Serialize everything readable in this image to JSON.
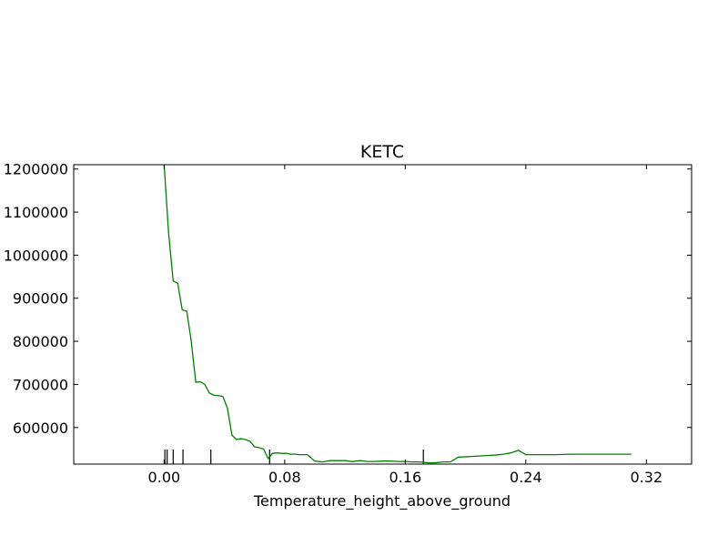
{
  "chart_data": {
    "type": "line",
    "title": "KETC",
    "xlabel": "Temperature_height_above_ground",
    "ylabel": "",
    "xlim": [
      -0.06,
      0.35
    ],
    "ylim": [
      515000,
      1210000
    ],
    "grid": false,
    "line_color": "#008000",
    "x_ticks": [
      0.0,
      0.08,
      0.16,
      0.24,
      0.32
    ],
    "x_tick_labels": [
      "0.00",
      "0.08",
      "0.16",
      "0.24",
      "0.32"
    ],
    "y_ticks": [
      600000,
      700000,
      800000,
      900000,
      1000000,
      1100000,
      1200000
    ],
    "y_tick_labels": [
      "600000",
      "700000",
      "800000",
      "900000",
      "1000000",
      "1100000",
      "1200000"
    ],
    "rug_x": [
      0.0005,
      0.002,
      0.006,
      0.0125,
      0.031,
      0.07,
      0.172
    ],
    "series": [
      {
        "x": [
          0.0,
          0.003,
          0.006,
          0.009,
          0.012,
          0.015,
          0.018,
          0.021,
          0.024,
          0.027,
          0.03,
          0.033,
          0.036,
          0.039,
          0.042,
          0.045,
          0.048,
          0.051,
          0.054,
          0.057,
          0.06,
          0.063,
          0.066,
          0.069,
          0.072,
          0.075,
          0.078,
          0.081,
          0.084,
          0.087,
          0.09,
          0.095,
          0.1,
          0.105,
          0.11,
          0.115,
          0.12,
          0.125,
          0.13,
          0.135,
          0.14,
          0.145,
          0.15,
          0.155,
          0.16,
          0.165,
          0.17,
          0.175,
          0.18,
          0.185,
          0.19,
          0.195,
          0.2,
          0.205,
          0.21,
          0.215,
          0.22,
          0.225,
          0.23,
          0.235,
          0.24,
          0.245,
          0.25,
          0.253,
          0.26,
          0.27,
          0.28,
          0.29,
          0.3,
          0.31
        ],
        "y": [
          1210000,
          1050000,
          940000,
          935000,
          873000,
          870000,
          800000,
          705000,
          706000,
          700000,
          680000,
          675000,
          674000,
          672000,
          645000,
          582000,
          572000,
          574000,
          572000,
          568000,
          555000,
          553000,
          550000,
          528000,
          540000,
          541000,
          540000,
          540000,
          538000,
          538000,
          537000,
          537000,
          522000,
          520000,
          523000,
          523000,
          523000,
          521000,
          523000,
          521000,
          521000,
          522000,
          522000,
          521000,
          521000,
          520000,
          520000,
          518000,
          518000,
          520000,
          520000,
          531000,
          532000,
          533000,
          534000,
          535000,
          536000,
          538000,
          541000,
          547000,
          537000,
          537000,
          537000,
          537000,
          537000,
          538000,
          538000,
          538000,
          538000,
          538000
        ]
      }
    ]
  }
}
